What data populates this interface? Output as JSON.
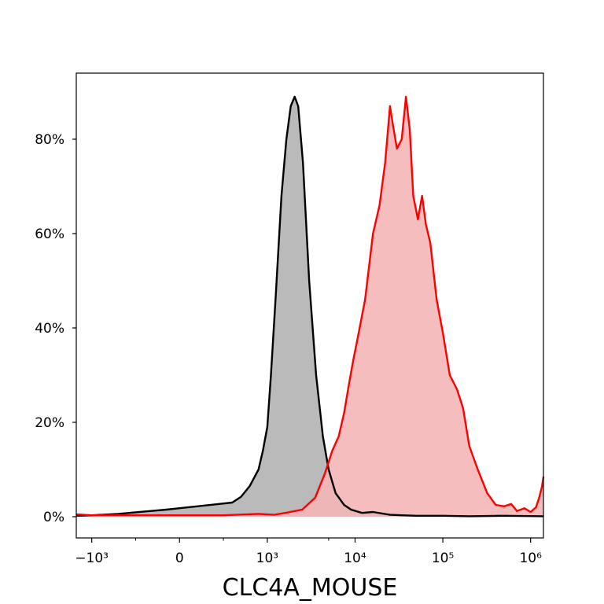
{
  "chart_data": {
    "type": "area",
    "title": "",
    "xlabel": "CLC4A_MOUSE",
    "ylabel": "",
    "x_scale": "symlog",
    "x_scale_linthresh": 1000,
    "xlim": [
      -1500,
      1400000
    ],
    "ylim": [
      -4.5,
      94
    ],
    "grid": false,
    "legend": "none",
    "x_ticks": [
      {
        "value": -1000,
        "label": "−10³"
      },
      {
        "value": 0,
        "label": "0"
      },
      {
        "value": 1000,
        "label": "10³"
      },
      {
        "value": 10000,
        "label": "10⁴"
      },
      {
        "value": 100000,
        "label": "10⁵"
      },
      {
        "value": 1000000,
        "label": "10⁶"
      }
    ],
    "x_minor_ticks": [
      -500,
      500,
      5000
    ],
    "y_ticks": [
      {
        "value": 0,
        "label": "0%"
      },
      {
        "value": 20,
        "label": "20%"
      },
      {
        "value": 40,
        "label": "40%"
      },
      {
        "value": 60,
        "label": "60%"
      },
      {
        "value": 80,
        "label": "80%"
      }
    ],
    "series": [
      {
        "color": "#000000",
        "fill": "#b3b3b3",
        "points": [
          [
            -1500,
            0.2
          ],
          [
            -1000,
            0.3
          ],
          [
            -700,
            0.6
          ],
          [
            -400,
            1.1
          ],
          [
            -150,
            1.5
          ],
          [
            0,
            1.8
          ],
          [
            200,
            2.2
          ],
          [
            400,
            2.6
          ],
          [
            600,
            3.0
          ],
          [
            700,
            4.2
          ],
          [
            800,
            6.5
          ],
          [
            900,
            10
          ],
          [
            950,
            14
          ],
          [
            1000,
            19
          ],
          [
            1100,
            30
          ],
          [
            1250,
            47
          ],
          [
            1450,
            68
          ],
          [
            1650,
            80
          ],
          [
            1850,
            87
          ],
          [
            2050,
            89
          ],
          [
            2250,
            87
          ],
          [
            2550,
            75
          ],
          [
            3000,
            50
          ],
          [
            3600,
            30
          ],
          [
            4300,
            17
          ],
          [
            5000,
            10
          ],
          [
            6000,
            5
          ],
          [
            7500,
            2.5
          ],
          [
            9000,
            1.5
          ],
          [
            12000,
            0.8
          ],
          [
            16000,
            1.0
          ],
          [
            25000,
            0.4
          ],
          [
            50000,
            0.2
          ],
          [
            100000,
            0.2
          ],
          [
            200000,
            0.1
          ],
          [
            500000,
            0.2
          ],
          [
            1400000,
            0.1
          ]
        ]
      },
      {
        "color": "#ff0000",
        "fill": "#f4b6b6",
        "points": [
          [
            -1500,
            0.5
          ],
          [
            -1000,
            0.3
          ],
          [
            0,
            0.3
          ],
          [
            500,
            0.3
          ],
          [
            900,
            0.6
          ],
          [
            1200,
            0.4
          ],
          [
            1600,
            0.8
          ],
          [
            2500,
            1.5
          ],
          [
            3500,
            4
          ],
          [
            4500,
            9
          ],
          [
            5500,
            14
          ],
          [
            6500,
            17
          ],
          [
            7500,
            22
          ],
          [
            8500,
            28
          ],
          [
            9500,
            33
          ],
          [
            11000,
            39
          ],
          [
            13000,
            46
          ],
          [
            16000,
            60
          ],
          [
            19000,
            66
          ],
          [
            22000,
            75
          ],
          [
            25000,
            87
          ],
          [
            27000,
            83
          ],
          [
            30000,
            78
          ],
          [
            34000,
            80
          ],
          [
            38000,
            89
          ],
          [
            42000,
            82
          ],
          [
            46000,
            68
          ],
          [
            52000,
            63
          ],
          [
            58000,
            68
          ],
          [
            64000,
            62
          ],
          [
            72000,
            58
          ],
          [
            85000,
            46
          ],
          [
            100000,
            39
          ],
          [
            120000,
            30
          ],
          [
            145000,
            27
          ],
          [
            170000,
            23
          ],
          [
            200000,
            15
          ],
          [
            250000,
            10
          ],
          [
            320000,
            5
          ],
          [
            400000,
            2.5
          ],
          [
            500000,
            2.2
          ],
          [
            600000,
            2.7
          ],
          [
            700000,
            1.2
          ],
          [
            850000,
            1.8
          ],
          [
            1000000,
            1.0
          ],
          [
            1150000,
            2.0
          ],
          [
            1250000,
            4.0
          ],
          [
            1350000,
            6.5
          ],
          [
            1400000,
            8.5
          ]
        ]
      }
    ]
  }
}
